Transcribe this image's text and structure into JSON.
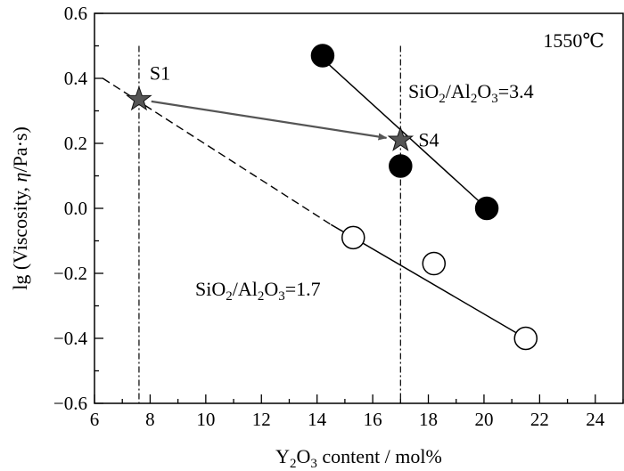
{
  "chart_data": {
    "type": "scatter",
    "xlim": [
      6,
      25
    ],
    "ylim": [
      -0.6,
      0.6
    ],
    "xticks": [
      6,
      8,
      10,
      12,
      14,
      16,
      18,
      20,
      22,
      24
    ],
    "yticks": [
      0.6,
      0.4,
      0.2,
      0.0,
      -0.2,
      -0.4,
      -0.6
    ],
    "ytick_labels": [
      "0.6",
      "0.4",
      "0.2",
      "0.0",
      "−0.2",
      "−0.4",
      "−0.6"
    ],
    "xminor_step": 1,
    "yminor_step": 0.1,
    "grid": false,
    "xlabel": {
      "parts": [
        {
          "t": "Y",
          "s": "n"
        },
        {
          "t": "2",
          "s": "sub"
        },
        {
          "t": "O",
          "s": "n"
        },
        {
          "t": "3",
          "s": "sub"
        },
        {
          "t": " content / mol%",
          "s": "n"
        }
      ]
    },
    "ylabel": {
      "parts": [
        {
          "t": "lg (Viscosity, ",
          "s": "n"
        },
        {
          "t": "η",
          "s": "i"
        },
        {
          "t": "/Pa·s)",
          "s": "n"
        }
      ]
    },
    "temperature": "1550℃",
    "series": [
      {
        "label": {
          "parts": [
            {
              "t": "SiO",
              "s": "n"
            },
            {
              "t": "2",
              "s": "sub"
            },
            {
              "t": "/Al",
              "s": "n"
            },
            {
              "t": "2",
              "s": "sub"
            },
            {
              "t": "O",
              "s": "n"
            },
            {
              "t": "3",
              "s": "sub"
            },
            {
              "t": "=3.4",
              "s": "n"
            }
          ]
        },
        "marker": "filled-circle",
        "x": [
          14.2,
          17.0,
          20.1
        ],
        "y": [
          0.47,
          0.13,
          0.0
        ],
        "fit": {
          "x": [
            14.2,
            20.1
          ],
          "y": [
            0.46,
            0.0
          ]
        }
      },
      {
        "label": {
          "parts": [
            {
              "t": "SiO",
              "s": "n"
            },
            {
              "t": "2",
              "s": "sub"
            },
            {
              "t": "/Al",
              "s": "n"
            },
            {
              "t": "2",
              "s": "sub"
            },
            {
              "t": "O",
              "s": "n"
            },
            {
              "t": "3",
              "s": "sub"
            },
            {
              "t": "=1.7",
              "s": "n"
            }
          ]
        },
        "marker": "open-circle",
        "x": [
          15.3,
          18.2,
          21.5
        ],
        "y": [
          -0.09,
          -0.17,
          -0.4
        ],
        "fit": {
          "x": [
            14.5,
            21.5
          ],
          "y": [
            -0.05,
            -0.4
          ]
        },
        "extrapolation": {
          "x": [
            6.3,
            14.5
          ],
          "y": [
            0.4,
            -0.05
          ]
        }
      }
    ],
    "star_points": [
      {
        "label": "S1",
        "x": 7.6,
        "y": 0.335
      },
      {
        "label": "S4",
        "x": 17.0,
        "y": 0.21
      }
    ],
    "arrow": {
      "from": {
        "x": 7.6,
        "y": 0.335
      },
      "to": {
        "x": 17.0,
        "y": 0.21
      }
    },
    "reference_lines_x": [
      7.6,
      17.0
    ]
  }
}
